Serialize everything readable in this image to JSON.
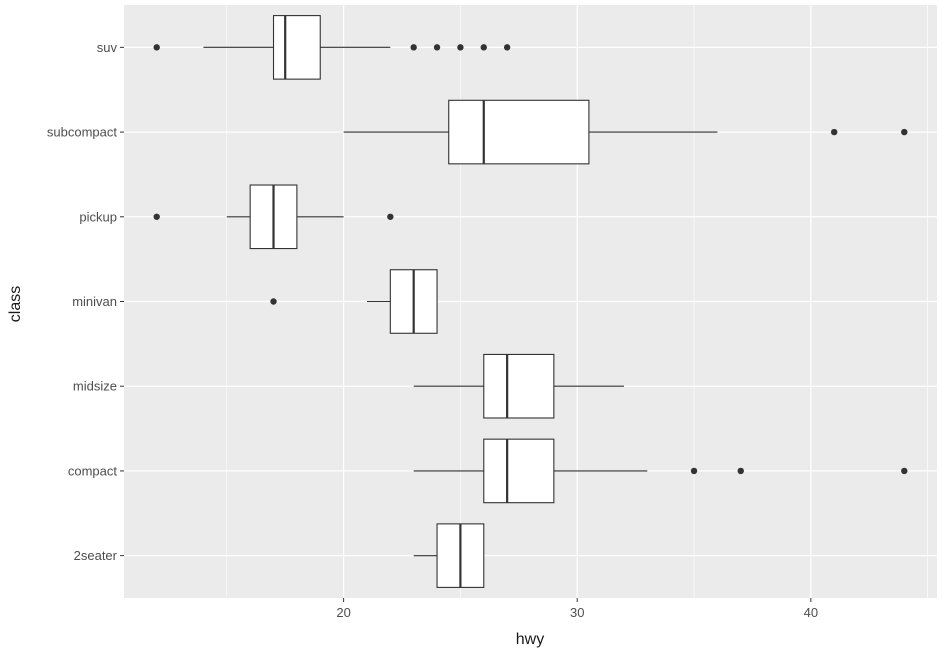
{
  "chart_data": {
    "type": "boxplot",
    "orientation": "horizontal",
    "title": "",
    "xlabel": "hwy",
    "ylabel": "class",
    "xlim": [
      10.6,
      45.4
    ],
    "x_major_ticks": [
      20,
      30,
      40
    ],
    "x_minor_ticks": [
      15,
      25,
      35,
      45
    ],
    "grid": true,
    "legend": "none",
    "colors": {
      "panel": "#ebebeb",
      "grid": "#ffffff",
      "box_fill": "#ffffff",
      "line": "#333333",
      "point": "#333333"
    },
    "categories": [
      "2seater",
      "compact",
      "midsize",
      "minivan",
      "pickup",
      "subcompact",
      "suv"
    ],
    "boxes": [
      {
        "category": "2seater",
        "whisker_low": 23,
        "q1": 24,
        "median": 25,
        "q3": 26,
        "whisker_high": 26,
        "outliers": []
      },
      {
        "category": "compact",
        "whisker_low": 23,
        "q1": 26,
        "median": 27,
        "q3": 29,
        "whisker_high": 33,
        "outliers": [
          35,
          37,
          44
        ]
      },
      {
        "category": "midsize",
        "whisker_low": 23,
        "q1": 26,
        "median": 27,
        "q3": 29,
        "whisker_high": 32,
        "outliers": []
      },
      {
        "category": "minivan",
        "whisker_low": 21,
        "q1": 22,
        "median": 23,
        "q3": 24,
        "whisker_high": 24,
        "outliers": [
          17
        ]
      },
      {
        "category": "pickup",
        "whisker_low": 15,
        "q1": 16,
        "median": 17,
        "q3": 18,
        "whisker_high": 20,
        "outliers": [
          12,
          22
        ]
      },
      {
        "category": "subcompact",
        "whisker_low": 20,
        "q1": 24.5,
        "median": 26,
        "q3": 30.5,
        "whisker_high": 36,
        "outliers": [
          41,
          44
        ]
      },
      {
        "category": "suv",
        "whisker_low": 14,
        "q1": 17,
        "median": 17.5,
        "q3": 19,
        "whisker_high": 22,
        "outliers": [
          12,
          23,
          24,
          25,
          26,
          27
        ]
      }
    ]
  }
}
